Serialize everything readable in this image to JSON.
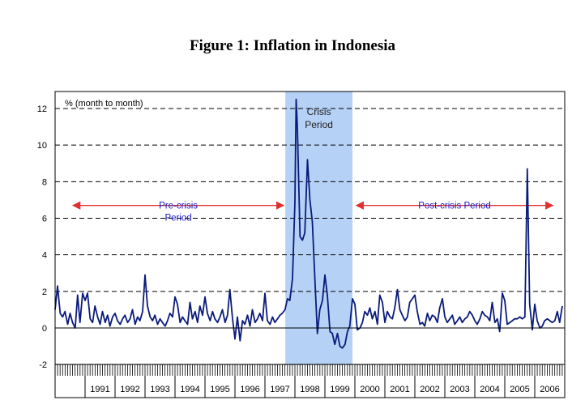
{
  "chart_data": {
    "type": "line",
    "title": "Figure 1: Inflation in Indonesia",
    "ylabel": "% (month to month)",
    "xlabel": "",
    "ylim": [
      -2,
      12
    ],
    "yticks": [
      -2,
      0,
      2,
      4,
      6,
      8,
      10,
      12
    ],
    "xlim": [
      1990.0,
      2007.0
    ],
    "years": [
      "1991",
      "1992",
      "1993",
      "1994",
      "1995",
      "1996",
      "1997",
      "1998",
      "1999",
      "2000",
      "2001",
      "2002",
      "2003",
      "2004",
      "2005",
      "2006"
    ],
    "grid": "dashed horizontal",
    "series": [
      {
        "color": "#0a1b7a",
        "points": [
          [
            1990.0,
            1.0
          ],
          [
            1990.08,
            2.3
          ],
          [
            1990.17,
            0.8
          ],
          [
            1990.25,
            0.6
          ],
          [
            1990.33,
            0.9
          ],
          [
            1990.42,
            0.2
          ],
          [
            1990.5,
            0.8
          ],
          [
            1990.58,
            0.3
          ],
          [
            1990.67,
            0.0
          ],
          [
            1990.75,
            1.8
          ],
          [
            1990.83,
            0.3
          ],
          [
            1990.92,
            1.9
          ],
          [
            1991.0,
            1.5
          ],
          [
            1991.08,
            1.9
          ],
          [
            1991.17,
            0.5
          ],
          [
            1991.25,
            0.3
          ],
          [
            1991.33,
            1.2
          ],
          [
            1991.42,
            0.6
          ],
          [
            1991.5,
            0.2
          ],
          [
            1991.58,
            0.9
          ],
          [
            1991.67,
            0.3
          ],
          [
            1991.75,
            0.7
          ],
          [
            1991.83,
            0.1
          ],
          [
            1991.92,
            0.6
          ],
          [
            1992.0,
            0.8
          ],
          [
            1992.08,
            0.4
          ],
          [
            1992.17,
            0.2
          ],
          [
            1992.25,
            0.5
          ],
          [
            1992.33,
            0.7
          ],
          [
            1992.42,
            0.3
          ],
          [
            1992.5,
            0.5
          ],
          [
            1992.58,
            1.0
          ],
          [
            1992.67,
            0.2
          ],
          [
            1992.75,
            0.6
          ],
          [
            1992.83,
            0.4
          ],
          [
            1992.92,
            0.9
          ],
          [
            1993.0,
            2.9
          ],
          [
            1993.08,
            1.2
          ],
          [
            1993.17,
            0.6
          ],
          [
            1993.25,
            0.4
          ],
          [
            1993.33,
            0.7
          ],
          [
            1993.42,
            0.2
          ],
          [
            1993.5,
            0.5
          ],
          [
            1993.58,
            0.3
          ],
          [
            1993.67,
            0.1
          ],
          [
            1993.75,
            0.4
          ],
          [
            1993.83,
            0.8
          ],
          [
            1993.92,
            0.6
          ],
          [
            1994.0,
            1.7
          ],
          [
            1994.08,
            1.3
          ],
          [
            1994.17,
            0.3
          ],
          [
            1994.25,
            0.6
          ],
          [
            1994.33,
            0.4
          ],
          [
            1994.42,
            0.2
          ],
          [
            1994.5,
            1.4
          ],
          [
            1994.58,
            0.5
          ],
          [
            1994.67,
            0.9
          ],
          [
            1994.75,
            0.3
          ],
          [
            1994.83,
            1.2
          ],
          [
            1994.92,
            0.7
          ],
          [
            1995.0,
            1.7
          ],
          [
            1995.08,
            0.8
          ],
          [
            1995.17,
            0.4
          ],
          [
            1995.25,
            0.9
          ],
          [
            1995.33,
            0.5
          ],
          [
            1995.42,
            0.3
          ],
          [
            1995.5,
            0.6
          ],
          [
            1995.58,
            1.0
          ],
          [
            1995.67,
            0.3
          ],
          [
            1995.75,
            0.7
          ],
          [
            1995.83,
            2.1
          ],
          [
            1995.92,
            0.5
          ],
          [
            1996.0,
            -0.6
          ],
          [
            1996.08,
            0.6
          ],
          [
            1996.17,
            -0.7
          ],
          [
            1996.25,
            0.4
          ],
          [
            1996.33,
            0.2
          ],
          [
            1996.42,
            0.7
          ],
          [
            1996.5,
            0.1
          ],
          [
            1996.58,
            1.0
          ],
          [
            1996.67,
            0.3
          ],
          [
            1996.75,
            0.5
          ],
          [
            1996.83,
            0.8
          ],
          [
            1996.92,
            0.4
          ],
          [
            1997.0,
            1.9
          ],
          [
            1997.08,
            0.4
          ],
          [
            1997.17,
            0.2
          ],
          [
            1997.25,
            0.6
          ],
          [
            1997.33,
            0.3
          ],
          [
            1997.42,
            0.5
          ],
          [
            1997.5,
            0.7
          ],
          [
            1997.58,
            0.8
          ],
          [
            1997.67,
            1.0
          ],
          [
            1997.75,
            1.6
          ],
          [
            1997.83,
            1.5
          ],
          [
            1997.92,
            2.7
          ],
          [
            1998.0,
            6.9
          ],
          [
            1998.04,
            12.5
          ],
          [
            1998.08,
            11.0
          ],
          [
            1998.17,
            5.0
          ],
          [
            1998.25,
            4.8
          ],
          [
            1998.33,
            5.2
          ],
          [
            1998.42,
            9.2
          ],
          [
            1998.5,
            7.0
          ],
          [
            1998.58,
            5.8
          ],
          [
            1998.67,
            2.5
          ],
          [
            1998.75,
            -0.3
          ],
          [
            1998.83,
            1.0
          ],
          [
            1998.92,
            1.5
          ],
          [
            1999.0,
            2.9
          ],
          [
            1999.08,
            1.8
          ],
          [
            1999.17,
            -0.2
          ],
          [
            1999.25,
            -0.3
          ],
          [
            1999.33,
            -0.9
          ],
          [
            1999.42,
            -0.3
          ],
          [
            1999.5,
            -1.0
          ],
          [
            1999.58,
            -1.1
          ],
          [
            1999.67,
            -0.9
          ],
          [
            1999.75,
            -0.2
          ],
          [
            1999.83,
            0.1
          ],
          [
            1999.92,
            1.6
          ],
          [
            2000.0,
            1.3
          ],
          [
            2000.08,
            -0.1
          ],
          [
            2000.17,
            0.0
          ],
          [
            2000.25,
            0.3
          ],
          [
            2000.33,
            0.9
          ],
          [
            2000.42,
            0.7
          ],
          [
            2000.5,
            1.1
          ],
          [
            2000.58,
            0.5
          ],
          [
            2000.67,
            0.9
          ],
          [
            2000.75,
            0.2
          ],
          [
            2000.83,
            1.8
          ],
          [
            2000.92,
            1.4
          ],
          [
            2001.0,
            0.3
          ],
          [
            2001.08,
            0.9
          ],
          [
            2001.17,
            0.6
          ],
          [
            2001.25,
            0.5
          ],
          [
            2001.33,
            1.1
          ],
          [
            2001.42,
            2.1
          ],
          [
            2001.5,
            1.0
          ],
          [
            2001.58,
            0.7
          ],
          [
            2001.67,
            0.4
          ],
          [
            2001.75,
            0.6
          ],
          [
            2001.83,
            1.4
          ],
          [
            2001.92,
            1.6
          ],
          [
            2002.0,
            1.8
          ],
          [
            2002.08,
            0.9
          ],
          [
            2002.17,
            0.2
          ],
          [
            2002.25,
            0.3
          ],
          [
            2002.33,
            0.1
          ],
          [
            2002.42,
            0.8
          ],
          [
            2002.5,
            0.4
          ],
          [
            2002.58,
            0.7
          ],
          [
            2002.67,
            0.6
          ],
          [
            2002.75,
            0.3
          ],
          [
            2002.83,
            1.1
          ],
          [
            2002.92,
            1.6
          ],
          [
            2003.0,
            0.6
          ],
          [
            2003.08,
            0.3
          ],
          [
            2003.17,
            0.5
          ],
          [
            2003.25,
            0.7
          ],
          [
            2003.33,
            0.2
          ],
          [
            2003.42,
            0.4
          ],
          [
            2003.5,
            0.6
          ],
          [
            2003.58,
            0.3
          ],
          [
            2003.67,
            0.5
          ],
          [
            2003.75,
            0.6
          ],
          [
            2003.83,
            0.9
          ],
          [
            2003.92,
            0.7
          ],
          [
            2004.0,
            0.4
          ],
          [
            2004.08,
            0.2
          ],
          [
            2004.17,
            0.5
          ],
          [
            2004.25,
            0.9
          ],
          [
            2004.33,
            0.7
          ],
          [
            2004.42,
            0.6
          ],
          [
            2004.5,
            0.4
          ],
          [
            2004.58,
            1.4
          ],
          [
            2004.67,
            0.3
          ],
          [
            2004.75,
            0.5
          ],
          [
            2004.83,
            -0.2
          ],
          [
            2004.92,
            1.9
          ],
          [
            2005.0,
            1.5
          ],
          [
            2005.08,
            0.2
          ],
          [
            2005.17,
            0.3
          ],
          [
            2005.25,
            0.4
          ],
          [
            2005.33,
            0.5
          ],
          [
            2005.42,
            0.5
          ],
          [
            2005.5,
            0.6
          ],
          [
            2005.58,
            0.5
          ],
          [
            2005.67,
            0.6
          ],
          [
            2005.75,
            8.7
          ],
          [
            2005.83,
            1.3
          ],
          [
            2005.92,
            -0.1
          ],
          [
            2006.0,
            1.3
          ],
          [
            2006.08,
            0.4
          ],
          [
            2006.17,
            0.0
          ],
          [
            2006.25,
            0.1
          ],
          [
            2006.33,
            0.4
          ],
          [
            2006.42,
            0.5
          ],
          [
            2006.5,
            0.4
          ],
          [
            2006.58,
            0.3
          ],
          [
            2006.67,
            0.4
          ],
          [
            2006.75,
            0.9
          ],
          [
            2006.83,
            0.3
          ],
          [
            2006.92,
            1.2
          ]
        ]
      }
    ],
    "shaded_region": {
      "x": [
        1997.68,
        1999.92
      ],
      "color": "#a9c9f5",
      "label_line1": "Crisis",
      "label_line2": "Period"
    },
    "annotations": [
      {
        "text_line1": "Pre-crisis",
        "text_line2": "Period",
        "arrow_x": [
          1990.6,
          1997.62
        ],
        "arrow_y": 6.7,
        "color": "#e03030"
      },
      {
        "text_line1": "Post-crisis Period",
        "arrow_x": [
          2000.05,
          2006.6
        ],
        "arrow_y": 6.7,
        "color": "#e03030"
      }
    ]
  }
}
